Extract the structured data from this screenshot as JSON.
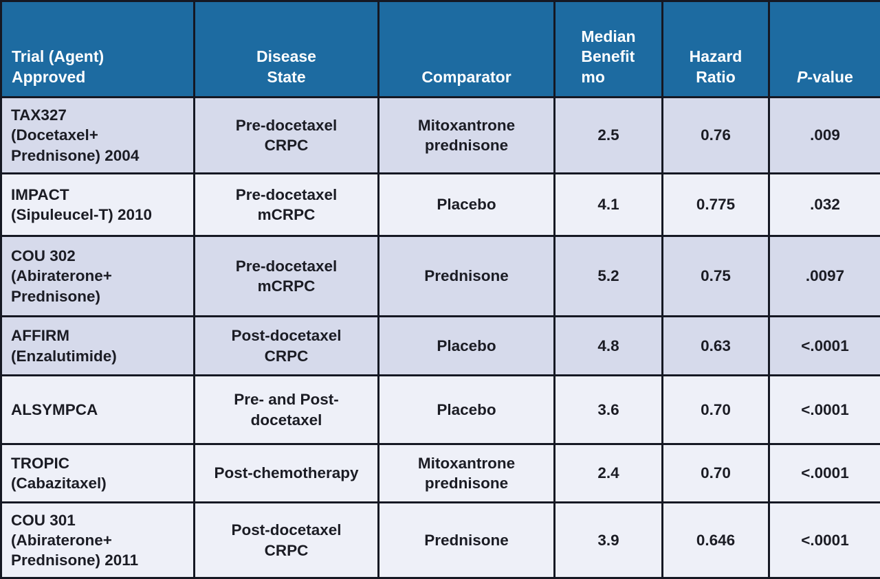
{
  "colors": {
    "header_bg": "#1d6ba1",
    "header_text": "#ffffff",
    "row_dark": "#d6daeb",
    "row_light": "#eef0f8",
    "border": "#151823",
    "body_text": "#1b1c24"
  },
  "table": {
    "header": {
      "trial": "Trial (Agent)\nApproved",
      "disease": "Disease\nState",
      "comparator": "Comparator",
      "median": "Median\nBenefit\nmo",
      "hazard": "Hazard\nRatio",
      "pvalue_italic": "P",
      "pvalue_rest": "-value"
    },
    "rows": [
      {
        "trial": "TAX327\n(Docetaxel+\nPrednisone) 2004",
        "disease": "Pre-docetaxel\nCRPC",
        "comparator": "Mitoxantrone\nprednisone",
        "median": "2.5",
        "hazard": "0.76",
        "pvalue": ".009",
        "shade": "dark"
      },
      {
        "trial": "IMPACT\n(Sipuleucel-T) 2010",
        "disease": "Pre-docetaxel\nmCRPC",
        "comparator": "Placebo",
        "median": "4.1",
        "hazard": "0.775",
        "pvalue": ".032",
        "shade": "light"
      },
      {
        "trial": "COU 302\n(Abiraterone+\nPrednisone)",
        "disease": "Pre-docetaxel\nmCRPC",
        "comparator": "Prednisone",
        "median": "5.2",
        "hazard": "0.75",
        "pvalue": ".0097",
        "shade": "dark"
      },
      {
        "trial": "AFFIRM\n(Enzalutimide)",
        "disease": "Post-docetaxel\nCRPC",
        "comparator": "Placebo",
        "median": "4.8",
        "hazard": "0.63",
        "pvalue": "<.0001",
        "shade": "dark"
      },
      {
        "trial": "ALSYMPCA",
        "disease": "Pre- and Post-\ndocetaxel",
        "comparator": "Placebo",
        "median": "3.6",
        "hazard": "0.70",
        "pvalue": "<.0001",
        "shade": "light"
      },
      {
        "trial": "TROPIC\n(Cabazitaxel)",
        "disease": "Post-chemotherapy",
        "comparator": "Mitoxantrone\nprednisone",
        "median": "2.4",
        "hazard": "0.70",
        "pvalue": "<.0001",
        "shade": "light"
      },
      {
        "trial": "COU 301\n(Abiraterone+\nPrednisone) 2011",
        "disease": "Post-docetaxel\nCRPC",
        "comparator": "Prednisone",
        "median": "3.9",
        "hazard": "0.646",
        "pvalue": "<.0001",
        "shade": "light"
      }
    ]
  },
  "chart_data": {
    "type": "table",
    "columns": [
      "Trial (Agent) Approved",
      "Disease State",
      "Comparator",
      "Median Benefit mo",
      "Hazard Ratio",
      "P-value"
    ],
    "rows": [
      [
        "TAX327 (Docetaxel+ Prednisone) 2004",
        "Pre-docetaxel CRPC",
        "Mitoxantrone prednisone",
        2.5,
        0.76,
        ".009"
      ],
      [
        "IMPACT (Sipuleucel-T) 2010",
        "Pre-docetaxel mCRPC",
        "Placebo",
        4.1,
        0.775,
        ".032"
      ],
      [
        "COU 302 (Abiraterone+ Prednisone)",
        "Pre-docetaxel mCRPC",
        "Prednisone",
        5.2,
        0.75,
        ".0097"
      ],
      [
        "AFFIRM (Enzalutimide)",
        "Post-docetaxel CRPC",
        "Placebo",
        4.8,
        0.63,
        "<.0001"
      ],
      [
        "ALSYMPCA",
        "Pre- and Post-docetaxel",
        "Placebo",
        3.6,
        0.7,
        "<.0001"
      ],
      [
        "TROPIC (Cabazitaxel)",
        "Post-chemotherapy",
        "Mitoxantrone prednisone",
        2.4,
        0.7,
        "<.0001"
      ],
      [
        "COU 301 (Abiraterone+ Prednisone) 2011",
        "Post-docetaxel CRPC",
        "Prednisone",
        3.9,
        0.646,
        "<.0001"
      ]
    ]
  }
}
